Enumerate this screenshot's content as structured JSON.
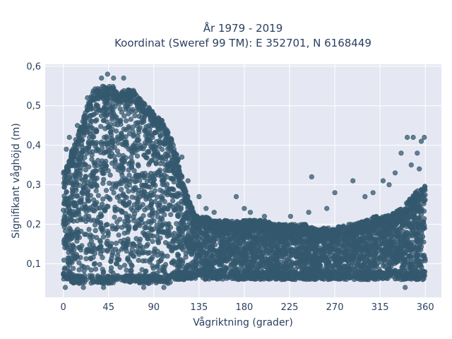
{
  "chart_data": {
    "type": "scatter",
    "title_line1": "År 1979 - 2019",
    "title_line2": "Koordinat (Sweref 99 TM): E 352701, N 6168449",
    "xlabel": "Vågriktning (grader)",
    "ylabel": "Signifikant våghöjd (m)",
    "xlim": [
      -18,
      376
    ],
    "ylim": [
      0.015,
      0.605
    ],
    "x_ticks": [
      0,
      45,
      90,
      135,
      180,
      225,
      270,
      315,
      360
    ],
    "x_tick_labels": [
      "0",
      "45",
      "90",
      "135",
      "180",
      "225",
      "270",
      "315",
      "360"
    ],
    "y_ticks": [
      0.1,
      0.2,
      0.3,
      0.4,
      0.5,
      0.6
    ],
    "y_tick_labels": [
      "0,1",
      "0,2",
      "0,3",
      "0,4",
      "0,5",
      "0,6"
    ],
    "grid": true,
    "plot_background": "#e5e8f2",
    "marker_color": "#34586e",
    "envelope": {
      "direction": [
        0,
        5,
        10,
        15,
        20,
        25,
        30,
        35,
        40,
        45,
        50,
        55,
        60,
        65,
        70,
        75,
        80,
        85,
        90,
        95,
        100,
        105,
        110,
        115,
        120,
        125,
        130,
        135,
        140,
        150,
        160,
        170,
        180,
        190,
        200,
        210,
        220,
        230,
        240,
        250,
        260,
        270,
        280,
        290,
        300,
        310,
        320,
        330,
        340,
        350,
        360
      ],
      "upper_height": [
        0.33,
        0.36,
        0.4,
        0.43,
        0.47,
        0.51,
        0.54,
        0.55,
        0.55,
        0.55,
        0.55,
        0.54,
        0.54,
        0.54,
        0.54,
        0.52,
        0.51,
        0.5,
        0.48,
        0.47,
        0.46,
        0.43,
        0.4,
        0.36,
        0.3,
        0.26,
        0.23,
        0.22,
        0.22,
        0.21,
        0.21,
        0.21,
        0.21,
        0.21,
        0.21,
        0.2,
        0.2,
        0.2,
        0.2,
        0.19,
        0.19,
        0.19,
        0.2,
        0.2,
        0.21,
        0.22,
        0.22,
        0.23,
        0.25,
        0.28,
        0.3
      ],
      "lower_height": [
        0.06,
        0.06,
        0.05,
        0.05,
        0.05,
        0.05,
        0.05,
        0.05,
        0.05,
        0.05,
        0.05,
        0.05,
        0.05,
        0.05,
        0.05,
        0.05,
        0.05,
        0.05,
        0.05,
        0.05,
        0.05,
        0.05,
        0.06,
        0.06,
        0.06,
        0.06,
        0.06,
        0.06,
        0.06,
        0.06,
        0.06,
        0.06,
        0.06,
        0.06,
        0.06,
        0.06,
        0.06,
        0.06,
        0.06,
        0.06,
        0.06,
        0.06,
        0.06,
        0.06,
        0.06,
        0.06,
        0.06,
        0.06,
        0.06,
        0.06,
        0.06
      ]
    },
    "outlier_points": [
      {
        "x": 38,
        "y": 0.57
      },
      {
        "x": 44,
        "y": 0.58
      },
      {
        "x": 50,
        "y": 0.57
      },
      {
        "x": 60,
        "y": 0.57
      },
      {
        "x": 24,
        "y": 0.52
      },
      {
        "x": 14,
        "y": 0.45
      },
      {
        "x": 6,
        "y": 0.42
      },
      {
        "x": 3,
        "y": 0.39
      },
      {
        "x": 105,
        "y": 0.41
      },
      {
        "x": 110,
        "y": 0.39
      },
      {
        "x": 118,
        "y": 0.37
      },
      {
        "x": 124,
        "y": 0.31
      },
      {
        "x": 135,
        "y": 0.27
      },
      {
        "x": 172,
        "y": 0.27
      },
      {
        "x": 180,
        "y": 0.24
      },
      {
        "x": 186,
        "y": 0.23
      },
      {
        "x": 247,
        "y": 0.32
      },
      {
        "x": 270,
        "y": 0.28
      },
      {
        "x": 288,
        "y": 0.31
      },
      {
        "x": 300,
        "y": 0.27
      },
      {
        "x": 308,
        "y": 0.28
      },
      {
        "x": 318,
        "y": 0.31
      },
      {
        "x": 324,
        "y": 0.3
      },
      {
        "x": 330,
        "y": 0.33
      },
      {
        "x": 336,
        "y": 0.38
      },
      {
        "x": 342,
        "y": 0.42
      },
      {
        "x": 348,
        "y": 0.42
      },
      {
        "x": 352,
        "y": 0.38
      },
      {
        "x": 356,
        "y": 0.41
      },
      {
        "x": 359,
        "y": 0.42
      },
      {
        "x": 346,
        "y": 0.35
      },
      {
        "x": 354,
        "y": 0.34
      },
      {
        "x": 244,
        "y": 0.23
      },
      {
        "x": 262,
        "y": 0.24
      },
      {
        "x": 226,
        "y": 0.22
      },
      {
        "x": 200,
        "y": 0.22
      },
      {
        "x": 128,
        "y": 0.24
      },
      {
        "x": 142,
        "y": 0.24
      },
      {
        "x": 150,
        "y": 0.23
      },
      {
        "x": 2,
        "y": 0.04
      },
      {
        "x": 20,
        "y": 0.04
      },
      {
        "x": 40,
        "y": 0.04
      },
      {
        "x": 80,
        "y": 0.04
      },
      {
        "x": 100,
        "y": 0.04
      },
      {
        "x": 340,
        "y": 0.04
      }
    ]
  }
}
